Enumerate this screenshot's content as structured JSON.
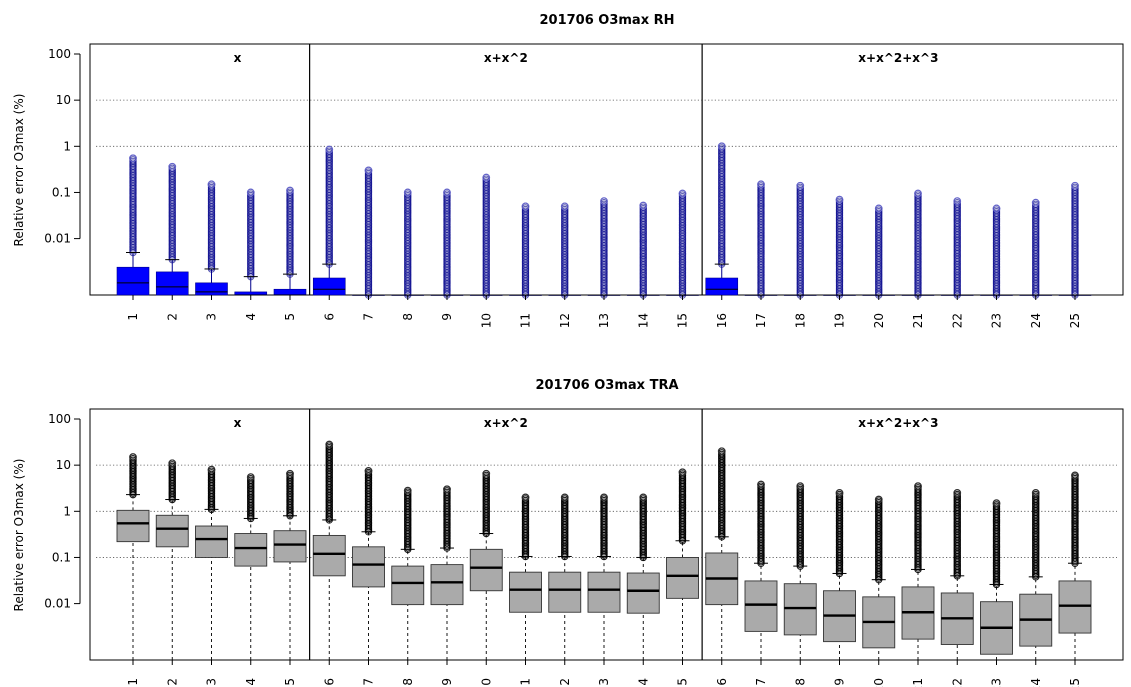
{
  "chart_data": [
    {
      "type": "boxplot",
      "title": "201706 O3max RH",
      "ylabel": "Relative error O3max (%)",
      "y_scale": "log",
      "ylim": [
        0.0006,
        100
      ],
      "y_ticks": [
        0.01,
        0.1,
        1,
        10,
        100
      ],
      "y_tick_labels": [
        "0.01",
        "0.1",
        "1",
        "10",
        "100"
      ],
      "grid": "horizontal dotted at 10 and 1",
      "box_color": "#0000ff",
      "outlier_color": "#00008b",
      "categories": [
        "1",
        "2",
        "3",
        "4",
        "5",
        "6",
        "7",
        "8",
        "9",
        "10",
        "11",
        "12",
        "13",
        "14",
        "15",
        "16",
        "17",
        "18",
        "19",
        "20",
        "21",
        "22",
        "23",
        "24",
        "25"
      ],
      "groups": [
        {
          "label": "x",
          "first": 1,
          "last": 5
        },
        {
          "label": "x+x^2",
          "first": 6,
          "last": 15
        },
        {
          "label": "x+x^2+x^3",
          "first": 16,
          "last": 25
        }
      ],
      "boxes": [
        {
          "q1": 0.0006,
          "median": 0.0011,
          "q3": 0.0024,
          "whisker_high": 0.005,
          "outlier_max": 0.55
        },
        {
          "q1": 0.0006,
          "median": 0.0009,
          "q3": 0.0019,
          "whisker_high": 0.0035,
          "outlier_max": 0.36
        },
        {
          "q1": 0.0006,
          "median": 0.0007,
          "q3": 0.0011,
          "whisker_high": 0.0022,
          "outlier_max": 0.15
        },
        {
          "q1": 0.0006,
          "median": 0.0006,
          "q3": 0.0007,
          "whisker_high": 0.0015,
          "outlier_max": 0.1
        },
        {
          "q1": 0.0006,
          "median": 0.0006,
          "q3": 0.0008,
          "whisker_high": 0.0017,
          "outlier_max": 0.11
        },
        {
          "q1": 0.0006,
          "median": 0.0008,
          "q3": 0.0014,
          "whisker_high": 0.0028,
          "outlier_max": 0.85
        },
        {
          "q1": 0.0006,
          "median": 0.0006,
          "q3": 0.0006,
          "whisker_high": 0.0006,
          "outlier_max": 0.3
        },
        {
          "q1": 0.0006,
          "median": 0.0006,
          "q3": 0.0006,
          "whisker_high": 0.0006,
          "outlier_max": 0.1
        },
        {
          "q1": 0.0006,
          "median": 0.0006,
          "q3": 0.0006,
          "whisker_high": 0.0006,
          "outlier_max": 0.1
        },
        {
          "q1": 0.0006,
          "median": 0.0006,
          "q3": 0.0006,
          "whisker_high": 0.0006,
          "outlier_max": 0.21
        },
        {
          "q1": 0.0006,
          "median": 0.0006,
          "q3": 0.0006,
          "whisker_high": 0.0006,
          "outlier_max": 0.05
        },
        {
          "q1": 0.0006,
          "median": 0.0006,
          "q3": 0.0006,
          "whisker_high": 0.0006,
          "outlier_max": 0.05
        },
        {
          "q1": 0.0006,
          "median": 0.0006,
          "q3": 0.0006,
          "whisker_high": 0.0006,
          "outlier_max": 0.065
        },
        {
          "q1": 0.0006,
          "median": 0.0006,
          "q3": 0.0006,
          "whisker_high": 0.0006,
          "outlier_max": 0.052
        },
        {
          "q1": 0.0006,
          "median": 0.0006,
          "q3": 0.0006,
          "whisker_high": 0.0006,
          "outlier_max": 0.095
        },
        {
          "q1": 0.0006,
          "median": 0.0008,
          "q3": 0.0014,
          "whisker_high": 0.0028,
          "outlier_max": 1.0
        },
        {
          "q1": 0.0006,
          "median": 0.0006,
          "q3": 0.0006,
          "whisker_high": 0.0006,
          "outlier_max": 0.15
        },
        {
          "q1": 0.0006,
          "median": 0.0006,
          "q3": 0.0006,
          "whisker_high": 0.0006,
          "outlier_max": 0.14
        },
        {
          "q1": 0.0006,
          "median": 0.0006,
          "q3": 0.0006,
          "whisker_high": 0.0006,
          "outlier_max": 0.07
        },
        {
          "q1": 0.0006,
          "median": 0.0006,
          "q3": 0.0006,
          "whisker_high": 0.0006,
          "outlier_max": 0.045
        },
        {
          "q1": 0.0006,
          "median": 0.0006,
          "q3": 0.0006,
          "whisker_high": 0.0006,
          "outlier_max": 0.095
        },
        {
          "q1": 0.0006,
          "median": 0.0006,
          "q3": 0.0006,
          "whisker_high": 0.0006,
          "outlier_max": 0.065
        },
        {
          "q1": 0.0006,
          "median": 0.0006,
          "q3": 0.0006,
          "whisker_high": 0.0006,
          "outlier_max": 0.045
        },
        {
          "q1": 0.0006,
          "median": 0.0006,
          "q3": 0.0006,
          "whisker_high": 0.0006,
          "outlier_max": 0.06
        },
        {
          "q1": 0.0006,
          "median": 0.0006,
          "q3": 0.0006,
          "whisker_high": 0.0006,
          "outlier_max": 0.14
        }
      ]
    },
    {
      "type": "boxplot",
      "title": "201706 O3max TRA",
      "ylabel": "Relative error O3max (%)",
      "y_scale": "log",
      "ylim": [
        0.0006,
        100
      ],
      "y_ticks": [
        0.01,
        0.1,
        1,
        10,
        100
      ],
      "y_tick_labels": [
        "0.01",
        "0.1",
        "1",
        "10",
        "100"
      ],
      "grid": "horizontal dotted at 10, 1 and 0.1",
      "box_color": "#aaaaaa",
      "outlier_color": "#000000",
      "categories": [
        "1",
        "2",
        "3",
        "4",
        "5",
        "6",
        "7",
        "8",
        "9",
        "0",
        "1",
        "2",
        "3",
        "4",
        "5",
        "6",
        "7",
        "8",
        "9",
        "20",
        "21",
        "22",
        "23",
        "24",
        "25"
      ],
      "groups": [
        {
          "label": "x",
          "first": 1,
          "last": 5
        },
        {
          "label": "x+x^2",
          "first": 6,
          "last": 15
        },
        {
          "label": "x+x^2+x^3",
          "first": 16,
          "last": 25
        }
      ],
      "boxes": [
        {
          "whisker_low": 0.0006,
          "q1": 0.22,
          "median": 0.55,
          "q3": 1.05,
          "whisker_high": 2.3,
          "outlier_max": 15
        },
        {
          "whisker_low": 0.0006,
          "q1": 0.17,
          "median": 0.42,
          "q3": 0.82,
          "whisker_high": 1.8,
          "outlier_max": 11
        },
        {
          "whisker_low": 0.0006,
          "q1": 0.1,
          "median": 0.25,
          "q3": 0.48,
          "whisker_high": 1.1,
          "outlier_max": 8
        },
        {
          "whisker_low": 0.0006,
          "q1": 0.065,
          "median": 0.16,
          "q3": 0.33,
          "whisker_high": 0.7,
          "outlier_max": 5.5
        },
        {
          "whisker_low": 0.0006,
          "q1": 0.08,
          "median": 0.19,
          "q3": 0.38,
          "whisker_high": 0.8,
          "outlier_max": 6.5
        },
        {
          "whisker_low": 0.0006,
          "q1": 0.04,
          "median": 0.12,
          "q3": 0.3,
          "whisker_high": 0.65,
          "outlier_max": 28
        },
        {
          "whisker_low": 0.0006,
          "q1": 0.023,
          "median": 0.07,
          "q3": 0.17,
          "whisker_high": 0.36,
          "outlier_max": 7.5
        },
        {
          "whisker_low": 0.0006,
          "q1": 0.0095,
          "median": 0.028,
          "q3": 0.065,
          "whisker_high": 0.15,
          "outlier_max": 2.8
        },
        {
          "whisker_low": 0.0006,
          "q1": 0.0095,
          "median": 0.029,
          "q3": 0.07,
          "whisker_high": 0.16,
          "outlier_max": 3.0
        },
        {
          "whisker_low": 0.0006,
          "q1": 0.019,
          "median": 0.06,
          "q3": 0.15,
          "whisker_high": 0.33,
          "outlier_max": 6.5
        },
        {
          "whisker_low": 0.0006,
          "q1": 0.0065,
          "median": 0.02,
          "q3": 0.048,
          "whisker_high": 0.105,
          "outlier_max": 2.0
        },
        {
          "whisker_low": 0.0006,
          "q1": 0.0065,
          "median": 0.02,
          "q3": 0.048,
          "whisker_high": 0.105,
          "outlier_max": 2.0
        },
        {
          "whisker_low": 0.0006,
          "q1": 0.0065,
          "median": 0.02,
          "q3": 0.048,
          "whisker_high": 0.105,
          "outlier_max": 2.0
        },
        {
          "whisker_low": 0.0006,
          "q1": 0.0062,
          "median": 0.019,
          "q3": 0.046,
          "whisker_high": 0.1,
          "outlier_max": 2.0
        },
        {
          "whisker_low": 0.0006,
          "q1": 0.013,
          "median": 0.04,
          "q3": 0.1,
          "whisker_high": 0.23,
          "outlier_max": 7.0
        },
        {
          "whisker_low": 0.0006,
          "q1": 0.0095,
          "median": 0.035,
          "q3": 0.125,
          "whisker_high": 0.28,
          "outlier_max": 20
        },
        {
          "whisker_low": 0.0006,
          "q1": 0.0025,
          "median": 0.0095,
          "q3": 0.031,
          "whisker_high": 0.075,
          "outlier_max": 3.8
        },
        {
          "whisker_low": 0.0006,
          "q1": 0.0021,
          "median": 0.008,
          "q3": 0.027,
          "whisker_high": 0.065,
          "outlier_max": 3.5
        },
        {
          "whisker_low": 0.0006,
          "q1": 0.0015,
          "median": 0.0055,
          "q3": 0.019,
          "whisker_high": 0.045,
          "outlier_max": 2.5
        },
        {
          "whisker_low": 0.0006,
          "q1": 0.0011,
          "median": 0.004,
          "q3": 0.014,
          "whisker_high": 0.033,
          "outlier_max": 1.8
        },
        {
          "whisker_low": 0.0006,
          "q1": 0.0017,
          "median": 0.0065,
          "q3": 0.023,
          "whisker_high": 0.055,
          "outlier_max": 3.5
        },
        {
          "whisker_low": 0.0006,
          "q1": 0.0013,
          "median": 0.0048,
          "q3": 0.017,
          "whisker_high": 0.04,
          "outlier_max": 2.5
        },
        {
          "whisker_low": 0.0006,
          "q1": 0.0008,
          "median": 0.003,
          "q3": 0.011,
          "whisker_high": 0.026,
          "outlier_max": 1.5
        },
        {
          "whisker_low": 0.0006,
          "q1": 0.0012,
          "median": 0.0045,
          "q3": 0.016,
          "whisker_high": 0.038,
          "outlier_max": 2.5
        },
        {
          "whisker_low": 0.0006,
          "q1": 0.0023,
          "median": 0.009,
          "q3": 0.031,
          "whisker_high": 0.075,
          "outlier_max": 6.0
        }
      ]
    }
  ]
}
